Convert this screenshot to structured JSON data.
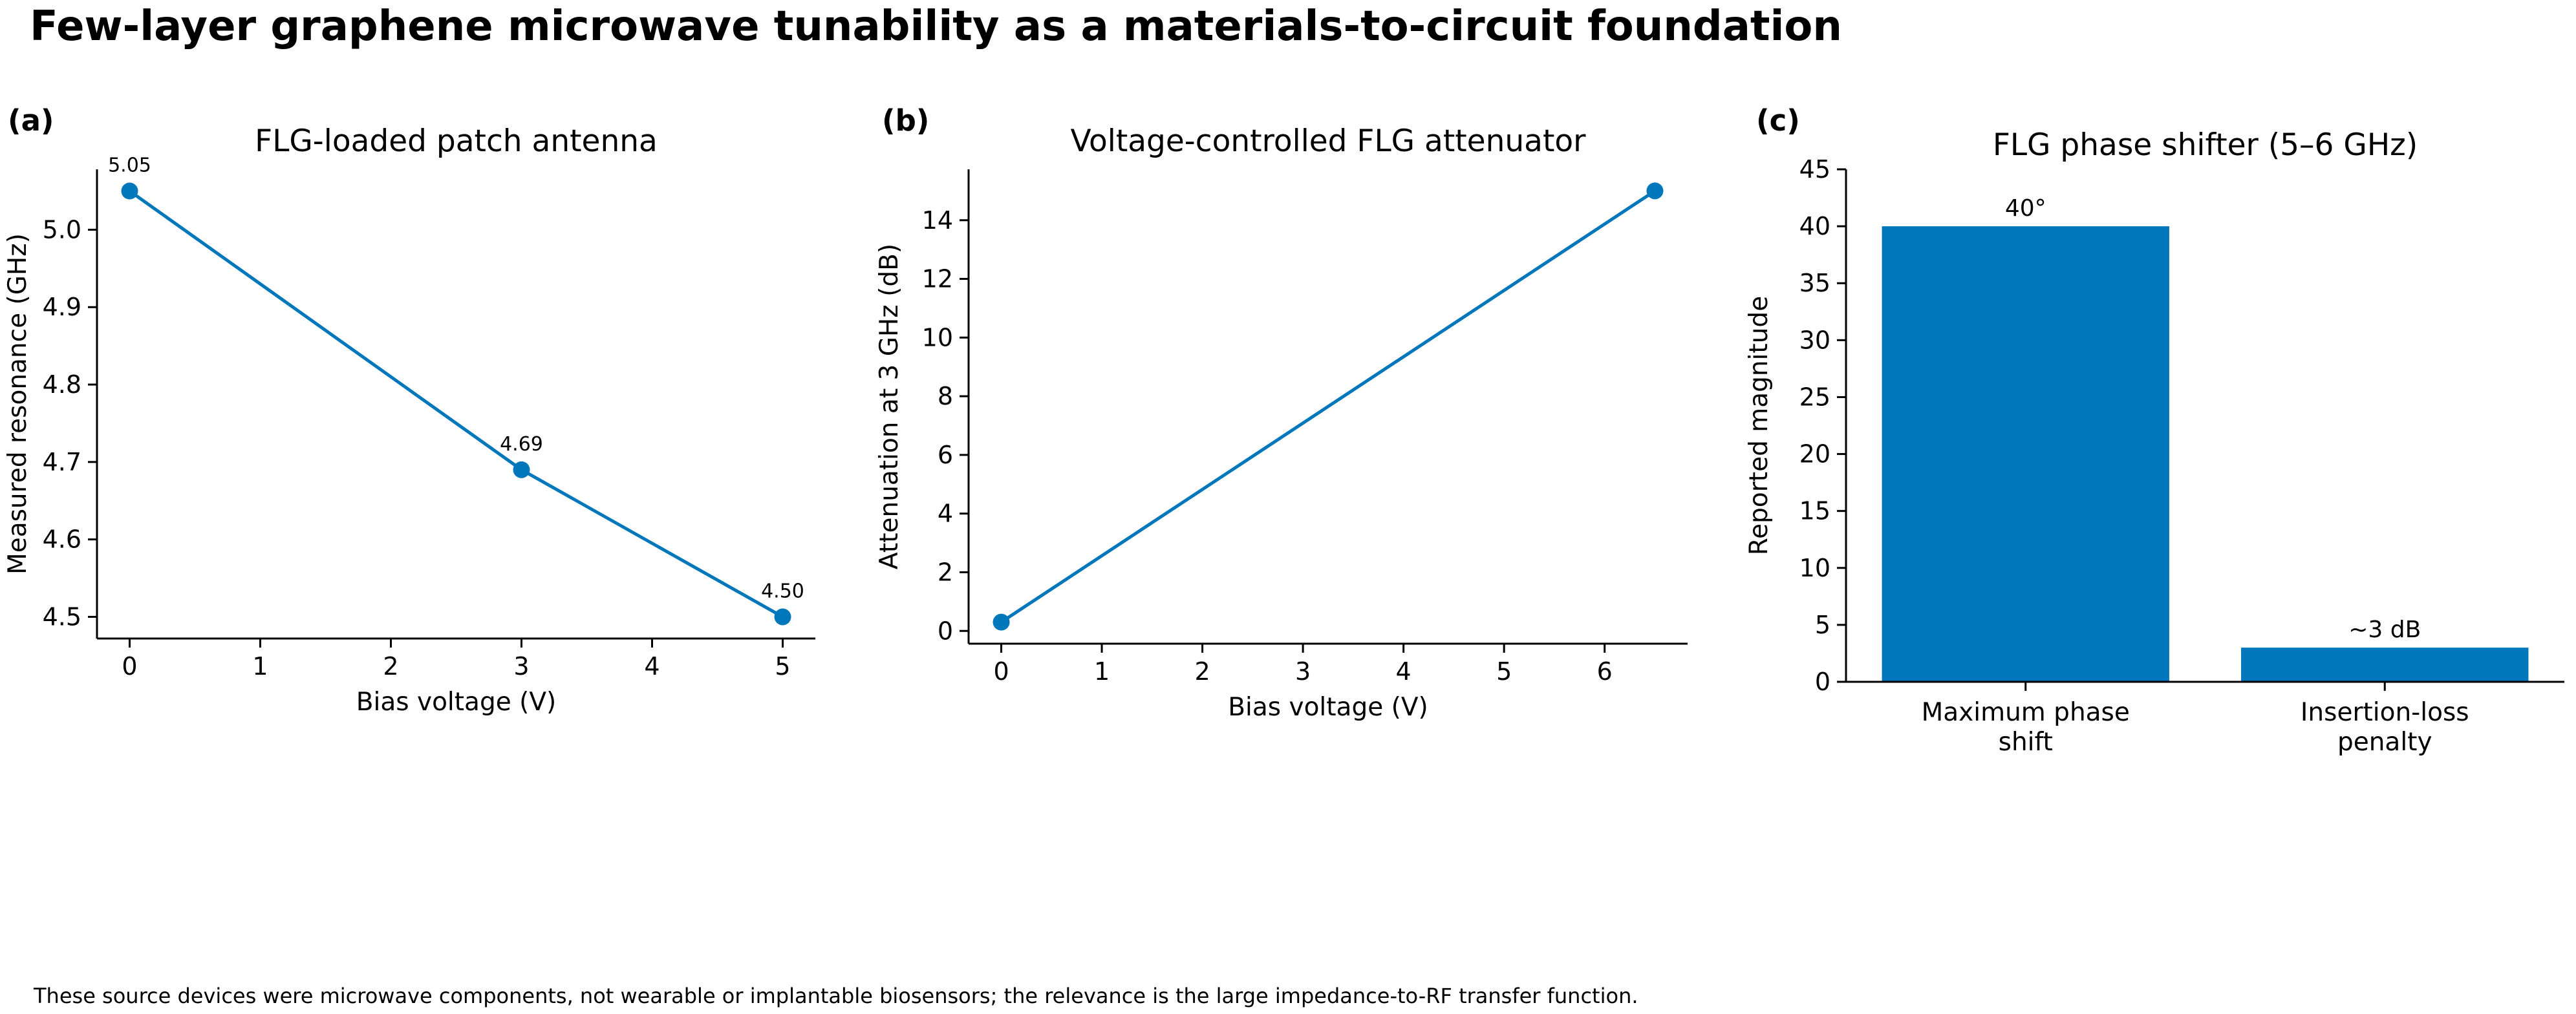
{
  "title": "Few-layer graphene microwave tunability as a materials-to-circuit foundation",
  "footnote": "These source devices were microwave components, not wearable or implantable biosensors; the relevance is the large impedance-to-RF transfer function.",
  "colors": {
    "series": "#0077bb",
    "text": "#000000",
    "axis": "#000000"
  },
  "chart_data": [
    {
      "panel": "(a)",
      "type": "line",
      "title": "FLG-loaded patch antenna",
      "xlabel": "Bias voltage (V)",
      "ylabel": "Measured resonance (GHz)",
      "xlim": [
        -0.25,
        5.25
      ],
      "ylim": [
        4.472,
        5.078
      ],
      "xticks": [
        0,
        1,
        2,
        3,
        4,
        5
      ],
      "yticks": [
        4.5,
        4.6,
        4.7,
        4.8,
        4.9,
        5.0
      ],
      "ytick_labels": [
        "4.5",
        "4.6",
        "4.7",
        "4.8",
        "4.9",
        "5.0"
      ],
      "x": [
        0,
        3,
        5
      ],
      "y": [
        5.05,
        4.69,
        4.5
      ],
      "point_labels": [
        "5.05",
        "4.69",
        "4.50"
      ],
      "grid": false
    },
    {
      "panel": "(b)",
      "type": "line",
      "title": "Voltage-controlled FLG attenuator",
      "xlabel": "Bias voltage (V)",
      "ylabel": "Attenuation at 3 GHz (dB)",
      "xlim": [
        -0.325,
        6.825
      ],
      "ylim": [
        -0.435,
        15.735
      ],
      "xticks": [
        0,
        1,
        2,
        3,
        4,
        5,
        6
      ],
      "yticks": [
        0,
        2,
        4,
        6,
        8,
        10,
        12,
        14
      ],
      "x": [
        0,
        6.5
      ],
      "y": [
        0.3,
        15.0
      ],
      "grid": false
    },
    {
      "panel": "(c)",
      "type": "bar",
      "title": "FLG phase shifter (5–6 GHz)",
      "xlabel": "",
      "ylabel": "Reported magnitude",
      "ylim": [
        0,
        45
      ],
      "yticks": [
        0,
        5,
        10,
        15,
        20,
        25,
        30,
        35,
        40,
        45
      ],
      "categories": [
        [
          "Maximum phase",
          "shift"
        ],
        [
          "Insertion-loss",
          "penalty"
        ]
      ],
      "values": [
        40,
        3
      ],
      "bar_labels": [
        "40°",
        "~3 dB"
      ],
      "grid": false
    }
  ]
}
